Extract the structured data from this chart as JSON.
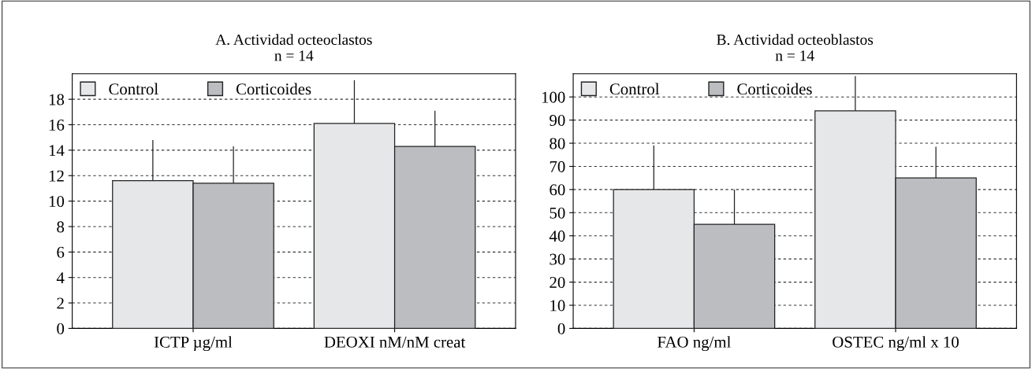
{
  "chart_data": [
    {
      "type": "bar",
      "title": "A. Actividad octeoclastos\nn = 14",
      "categories": [
        "ICTP µg/ml",
        "DEOXI nM/nM creat"
      ],
      "series": [
        {
          "name": "Control",
          "color": "#e6e7e9",
          "values": [
            11.6,
            16.1
          ],
          "errors": [
            [
              11.6,
              14.8
            ],
            [
              16.1,
              19.5
            ]
          ]
        },
        {
          "name": "Corticoides",
          "color": "#bcbdc1",
          "values": [
            11.4,
            14.3
          ],
          "errors": [
            [
              11.4,
              14.3
            ],
            [
              14.3,
              17.1
            ]
          ]
        }
      ],
      "ylim": [
        0,
        20
      ],
      "yticks": [
        0,
        2,
        4,
        6,
        8,
        10,
        12,
        14,
        16,
        18
      ],
      "grid": "y",
      "legend": "top left"
    },
    {
      "type": "bar",
      "title": "B. Actividad octeoblastos\nn = 14",
      "categories": [
        "FAO ng/ml",
        "OSTEC ng/ml x 10"
      ],
      "series": [
        {
          "name": "Control",
          "color": "#e6e7e9",
          "values": [
            60,
            94
          ],
          "errors": [
            [
              60,
              79
            ],
            [
              94,
              109
            ]
          ]
        },
        {
          "name": "Corticoides",
          "color": "#bcbdc1",
          "values": [
            45,
            65
          ],
          "errors": [
            [
              45,
              60
            ],
            [
              65,
              78.5
            ]
          ]
        }
      ],
      "ylim": [
        0,
        110
      ],
      "yticks": [
        0,
        10,
        20,
        30,
        40,
        50,
        60,
        70,
        80,
        90,
        100
      ],
      "grid": "y",
      "legend": "top left"
    }
  ]
}
